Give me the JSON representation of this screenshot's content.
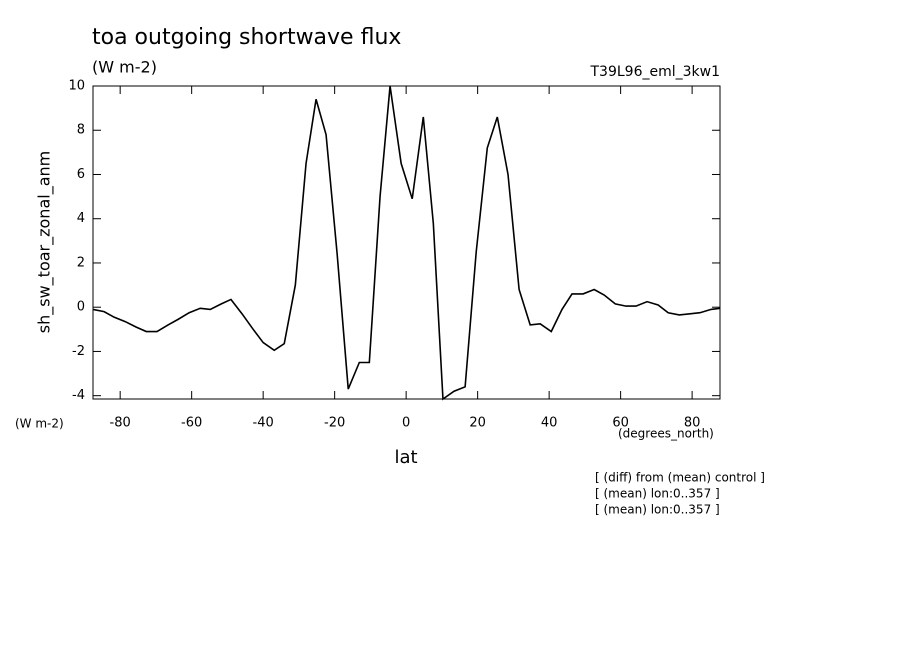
{
  "chart_data": {
    "type": "line",
    "title": "toa outgoing shortwave flux",
    "subtitle": "(W m-2)",
    "run_label": "T39L96_eml_3kw1",
    "y_label": "sh_sw_toar_zonal_anm",
    "y_units": "(W m-2)",
    "x_label": "lat",
    "x_units": "(degrees_north)",
    "notes": [
      "[ (diff) from (mean) control ]",
      "[ (mean) lon:0..357 ]",
      "[ (mean) lon:0..357 ]"
    ],
    "x": [
      -87.6,
      -84.5,
      -81.7,
      -78.6,
      -75.5,
      -72.7,
      -69.7,
      -66.6,
      -63.8,
      -60.7,
      -57.6,
      -54.8,
      -51.7,
      -49.0,
      -45.9,
      -42.8,
      -40.0,
      -36.9,
      -34.1,
      -31.0,
      -28.0,
      -25.2,
      -22.4,
      -19.3,
      -16.2,
      -13.1,
      -10.3,
      -7.3,
      -4.5,
      -1.4,
      1.7,
      4.8,
      7.6,
      10.3,
      13.4,
      16.5,
      19.6,
      22.7,
      25.5,
      28.5,
      31.6,
      34.7,
      37.5,
      40.6,
      43.6,
      46.4,
      49.5,
      52.6,
      55.4,
      58.5,
      61.5,
      64.3,
      67.4,
      70.5,
      73.3,
      76.4,
      79.4,
      82.2,
      85.3,
      87.8
    ],
    "series": [
      {
        "name": "sh_sw_toar_zonal_anm",
        "color": "#000000",
        "values": [
          -0.1,
          -0.2,
          -0.45,
          -0.65,
          -0.9,
          -1.1,
          -1.1,
          -0.8,
          -0.55,
          -0.25,
          -0.05,
          -0.1,
          0.15,
          0.35,
          -0.3,
          -1.0,
          -1.6,
          -1.95,
          -1.65,
          1.0,
          6.5,
          9.4,
          7.8,
          2.4,
          -3.7,
          -2.5,
          -2.5,
          5.0,
          10.0,
          6.5,
          4.9,
          8.6,
          3.8,
          -4.15,
          -3.8,
          -3.6,
          2.5,
          7.2,
          8.6,
          6.0,
          0.8,
          -0.8,
          -0.75,
          -1.1,
          -0.1,
          0.6,
          0.6,
          0.8,
          0.55,
          0.15,
          0.05,
          0.05,
          0.25,
          0.1,
          -0.25,
          -0.35,
          -0.3,
          -0.25,
          -0.1,
          -0.05
        ]
      }
    ],
    "xlim": [
      -87.6,
      87.8
    ],
    "ylim": [
      -4.15,
      10
    ],
    "xticks": [
      -80,
      -60,
      -40,
      -20,
      0,
      20,
      40,
      60,
      80
    ],
    "yticks": [
      -4,
      -2,
      0,
      2,
      4,
      6,
      8,
      10
    ],
    "grid": false
  }
}
